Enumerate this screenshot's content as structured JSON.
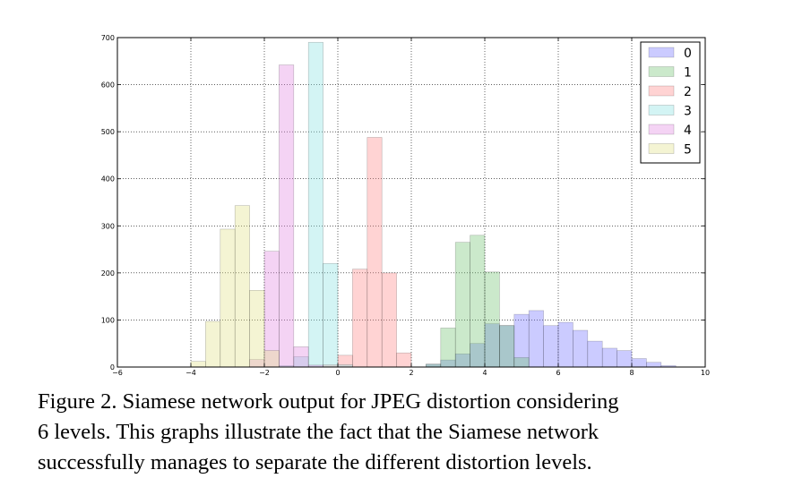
{
  "chart_data": {
    "type": "bar",
    "subtype": "overlapping-histogram",
    "title": "",
    "xlabel": "",
    "ylabel": "",
    "xlim": [
      -6,
      10
    ],
    "ylim": [
      0,
      700
    ],
    "xticks": [
      -6,
      -4,
      -2,
      0,
      2,
      4,
      6,
      8,
      10
    ],
    "yticks": [
      0,
      100,
      200,
      300,
      400,
      500,
      600,
      700
    ],
    "grid": true,
    "legend_position": "top-right",
    "bin_width": 0.4,
    "series": [
      {
        "name": "0",
        "color": "#6b6bff",
        "bin_starts": [
          2.4,
          2.8,
          3.2,
          3.6,
          4.0,
          4.4,
          4.8,
          5.2,
          5.6,
          6.0,
          6.4,
          6.8,
          7.2,
          7.6,
          8.0,
          8.4,
          8.8
        ],
        "values": [
          6,
          15,
          28,
          50,
          92,
          88,
          112,
          120,
          88,
          95,
          78,
          55,
          40,
          35,
          18,
          10,
          3
        ]
      },
      {
        "name": "1",
        "color": "#6bbf6b",
        "bin_starts": [
          2.4,
          2.8,
          3.2,
          3.6,
          4.0,
          4.4,
          4.8
        ],
        "values": [
          6,
          83,
          265,
          280,
          202,
          88,
          20
        ]
      },
      {
        "name": "2",
        "color": "#ff8080",
        "bin_starts": [
          -0.4,
          0.0,
          0.4,
          0.8,
          1.2,
          1.6
        ],
        "values": [
          5,
          25,
          208,
          488,
          200,
          30
        ]
      },
      {
        "name": "3",
        "color": "#80e0e0",
        "bin_starts": [
          -1.6,
          -1.2,
          -0.8,
          -0.4,
          0.0
        ],
        "values": [
          3,
          22,
          690,
          220,
          5
        ]
      },
      {
        "name": "4",
        "color": "#e080e0",
        "bin_starts": [
          -2.4,
          -2.0,
          -1.6,
          -1.2,
          -0.8
        ],
        "values": [
          16,
          246,
          642,
          43,
          4
        ]
      },
      {
        "name": "5",
        "color": "#e0e080",
        "bin_starts": [
          -4.0,
          -3.6,
          -3.2,
          -2.8,
          -2.4,
          -2.0
        ],
        "values": [
          12,
          97,
          293,
          343,
          163,
          35
        ]
      }
    ]
  },
  "caption": {
    "line1": "Figure 2. Siamese network output for JPEG distortion considering",
    "line2": "6 levels.  This graphs illustrate the fact that the Siamese network",
    "line3": "successfully manages to separate the different distortion levels."
  }
}
